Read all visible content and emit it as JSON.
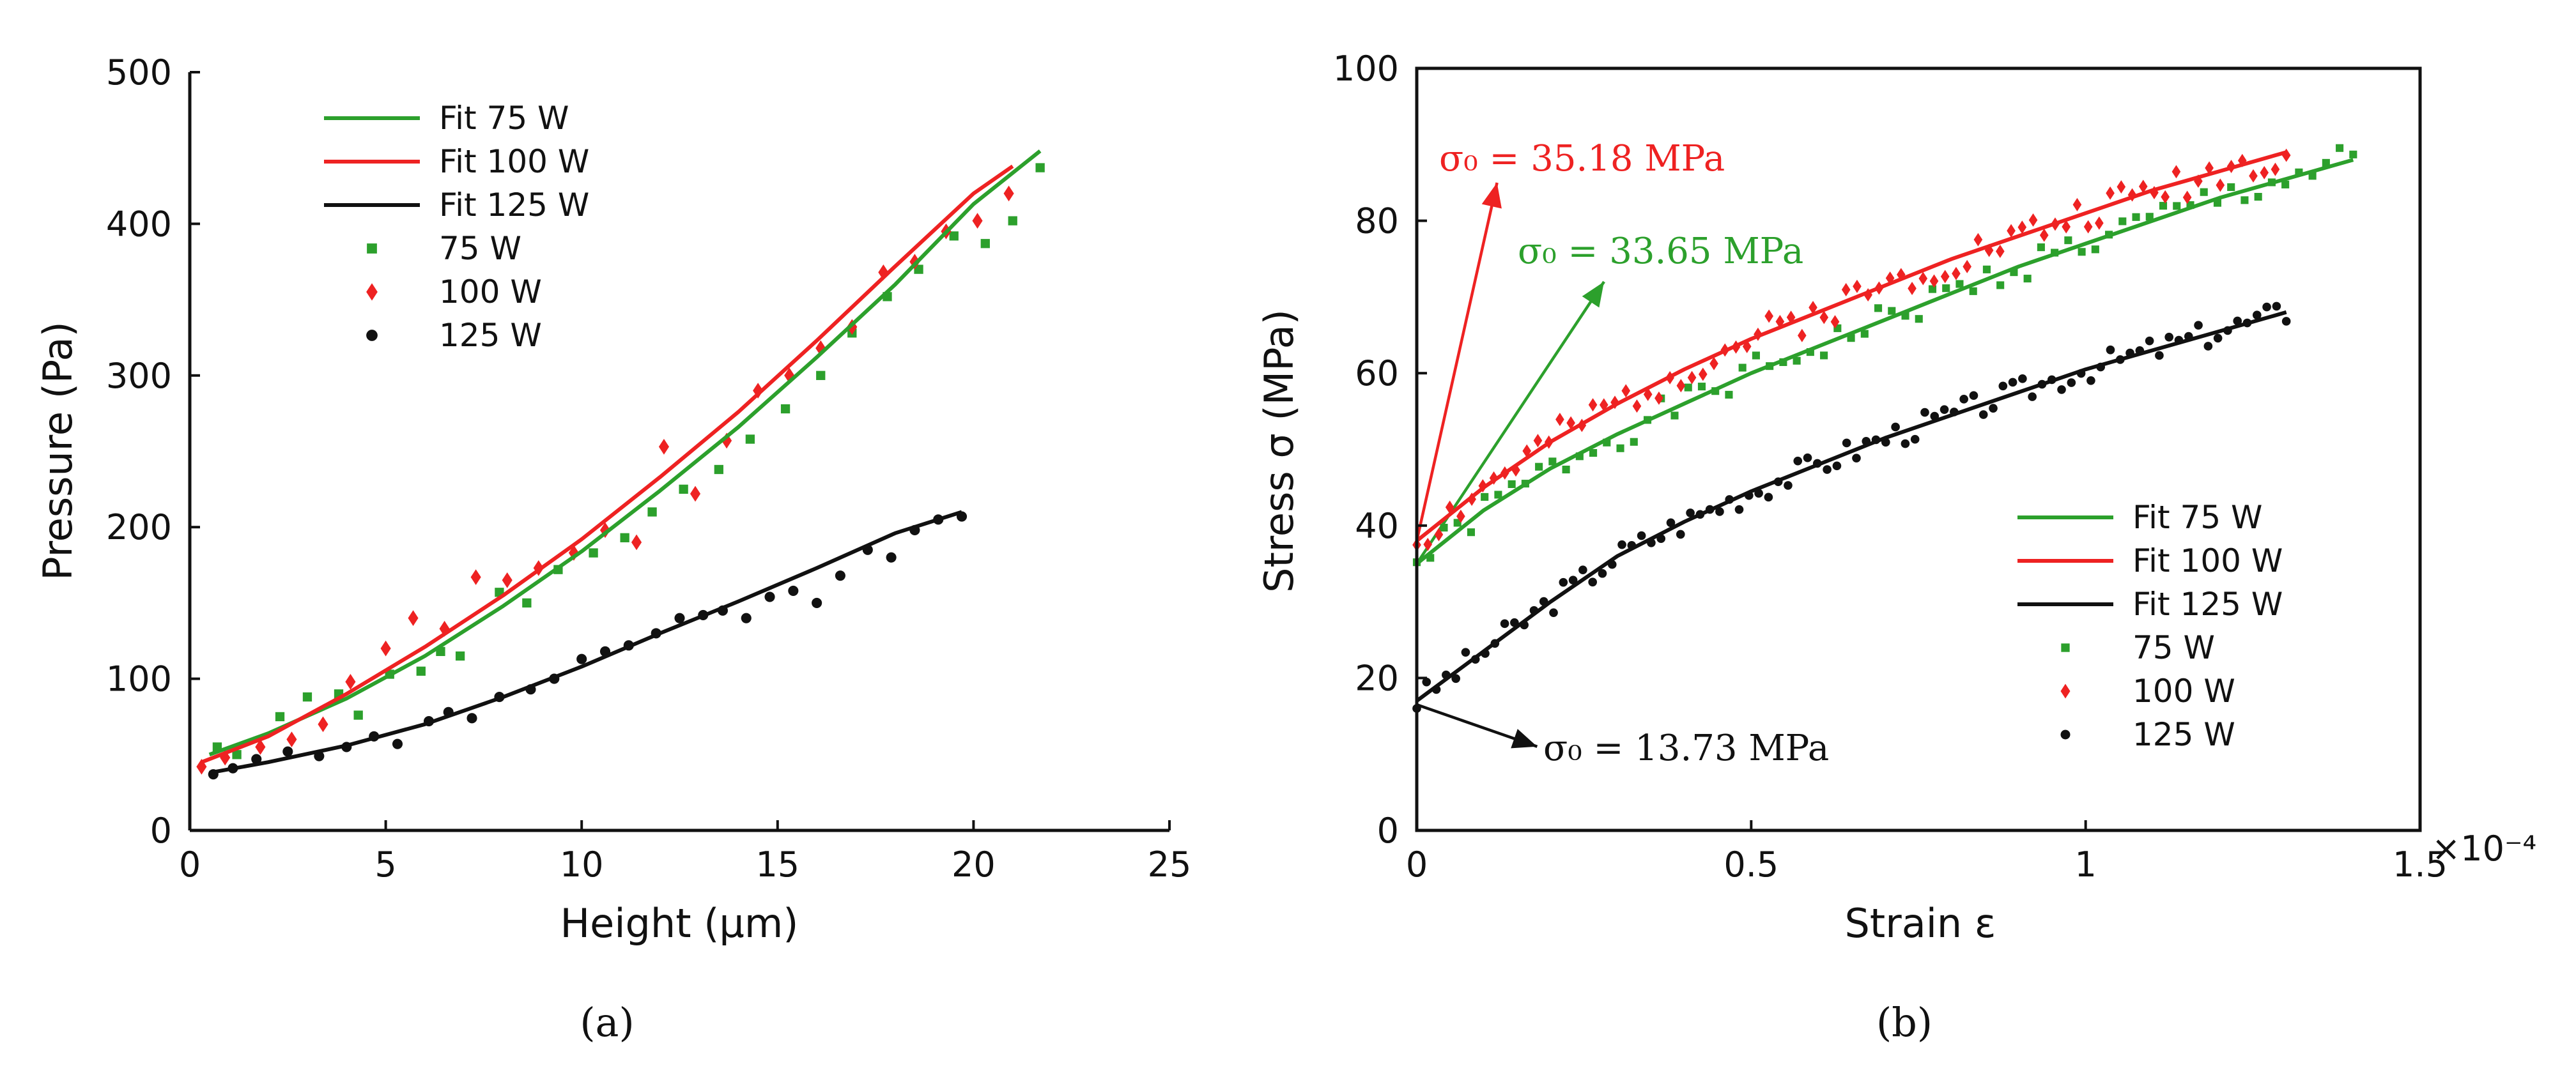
{
  "chart_data": [
    {
      "type": "scatter",
      "panel_label": "(a)",
      "title": "",
      "xlabel": "Height (µm)",
      "ylabel": "Pressure (Pa)",
      "xlim": [
        0,
        25
      ],
      "ylim": [
        0,
        500
      ],
      "xticks": [
        0,
        5,
        10,
        15,
        20,
        25
      ],
      "yticks": [
        0,
        100,
        200,
        300,
        400,
        500
      ],
      "legend_position": "top-left",
      "legend": [
        "Fit 75 W",
        "Fit 100 W",
        "Fit 125 W",
        "75 W",
        "100 W",
        "125 W"
      ],
      "series": [
        {
          "name": "Fit 75 W",
          "kind": "line",
          "color": "#2ca02c",
          "x": [
            0.5,
            2,
            4,
            6,
            8,
            10,
            12,
            14,
            16,
            18,
            20,
            21.7
          ],
          "y": [
            50,
            64,
            87,
            115,
            148,
            184,
            224,
            266,
            312,
            360,
            413,
            448
          ]
        },
        {
          "name": "Fit 100 W",
          "kind": "line",
          "color": "#ee2222",
          "x": [
            0.3,
            2,
            4,
            6,
            8,
            10,
            12,
            14,
            16,
            18,
            20,
            21
          ],
          "y": [
            45,
            62,
            90,
            121,
            155,
            192,
            233,
            276,
            323,
            372,
            420,
            438
          ]
        },
        {
          "name": "Fit 125 W",
          "kind": "line",
          "color": "#111111",
          "x": [
            0.5,
            2,
            4,
            6,
            8,
            10,
            12,
            14,
            16,
            18,
            19.7
          ],
          "y": [
            38,
            45,
            56,
            70,
            88,
            108,
            130,
            151,
            173,
            196,
            210
          ]
        },
        {
          "name": "75 W",
          "kind": "scatter",
          "marker": "square",
          "color": "#2ca02c",
          "x": [
            0.7,
            1.2,
            2.3,
            3.0,
            3.8,
            4.3,
            5.1,
            5.9,
            6.4,
            6.9,
            7.9,
            8.6,
            9.4,
            10.3,
            11.1,
            11.8,
            12.6,
            13.5,
            14.3,
            15.2,
            16.1,
            16.9,
            17.8,
            18.6,
            19.5,
            20.3,
            21.0,
            21.7
          ],
          "y": [
            55,
            50,
            75,
            88,
            90,
            76,
            103,
            105,
            118,
            115,
            157,
            150,
            172,
            183,
            193,
            210,
            225,
            238,
            258,
            278,
            300,
            328,
            352,
            370,
            392,
            387,
            402,
            437
          ]
        },
        {
          "name": "100 W",
          "kind": "scatter",
          "marker": "diamond",
          "color": "#ee2222",
          "x": [
            0.3,
            0.9,
            1.8,
            2.6,
            3.4,
            4.1,
            5.0,
            5.7,
            6.5,
            7.3,
            8.1,
            8.9,
            9.8,
            10.6,
            11.4,
            12.1,
            12.9,
            13.7,
            14.5,
            15.3,
            16.1,
            16.9,
            17.7,
            18.5,
            19.3,
            20.1,
            20.9
          ],
          "y": [
            42,
            48,
            55,
            60,
            70,
            98,
            120,
            140,
            133,
            167,
            165,
            173,
            183,
            198,
            190,
            253,
            222,
            257,
            290,
            300,
            318,
            332,
            368,
            375,
            395,
            402,
            420
          ]
        },
        {
          "name": "125 W",
          "kind": "scatter",
          "marker": "circle",
          "color": "#111111",
          "x": [
            0.6,
            1.1,
            1.7,
            2.5,
            3.3,
            4.0,
            4.7,
            5.3,
            6.1,
            6.6,
            7.2,
            7.9,
            8.7,
            9.3,
            10.0,
            10.6,
            11.2,
            11.9,
            12.5,
            13.1,
            13.6,
            14.2,
            14.8,
            15.4,
            16.0,
            16.6,
            17.3,
            17.9,
            18.5,
            19.1,
            19.7
          ],
          "y": [
            37,
            41,
            47,
            52,
            49,
            55,
            62,
            57,
            72,
            78,
            74,
            88,
            93,
            100,
            113,
            118,
            122,
            130,
            140,
            142,
            145,
            140,
            154,
            158,
            150,
            168,
            185,
            180,
            198,
            205,
            207
          ]
        }
      ]
    },
    {
      "type": "scatter",
      "panel_label": "(b)",
      "title": "",
      "xlabel": "Strain ε",
      "ylabel": "Stress σ (MPa)",
      "xlim": [
        0,
        1.5
      ],
      "ylim": [
        0,
        100
      ],
      "x_scale_label": "×10⁻⁴",
      "xticks": [
        0,
        0.5,
        1,
        1.5
      ],
      "xtick_labels": [
        "0",
        "0.5",
        "1",
        "1.5"
      ],
      "yticks": [
        0,
        20,
        40,
        60,
        80,
        100
      ],
      "legend_position": "lower-right",
      "legend": [
        "Fit 75 W",
        "Fit 100 W",
        "Fit 125 W",
        "75 W",
        "100 W",
        "125 W"
      ],
      "annotations": [
        {
          "text": "σ₀ = 35.18 MPa",
          "color": "#ee2222",
          "x_from": 0,
          "y_from": 38,
          "x_to": 0.12,
          "y_to": 85
        },
        {
          "text": "σ₀ = 33.65 MPa",
          "color": "#2ca02c",
          "x_from": 0,
          "y_from": 35,
          "x_to": 0.28,
          "y_to": 72
        },
        {
          "text": "σ₀ = 13.73 MPa",
          "color": "#111111",
          "x_from": 0,
          "y_from": 16.5,
          "x_to": 0.18,
          "y_to": 11
        }
      ],
      "series": [
        {
          "name": "Fit 75 W",
          "kind": "line",
          "color": "#2ca02c",
          "x": [
            0,
            0.1,
            0.2,
            0.3,
            0.4,
            0.5,
            0.6,
            0.7,
            0.8,
            0.9,
            1.0,
            1.1,
            1.2,
            1.3,
            1.4
          ],
          "y": [
            35,
            42,
            47.5,
            52,
            56,
            60,
            63.5,
            67,
            70.5,
            74,
            77,
            80,
            83,
            85.5,
            88
          ]
        },
        {
          "name": "Fit 100 W",
          "kind": "line",
          "color": "#ee2222",
          "x": [
            0,
            0.1,
            0.2,
            0.3,
            0.4,
            0.5,
            0.6,
            0.7,
            0.8,
            0.9,
            1.0,
            1.1,
            1.2,
            1.3
          ],
          "y": [
            38,
            45,
            51,
            56,
            60.5,
            64.5,
            68,
            71.5,
            75,
            78,
            81,
            84,
            86.5,
            89
          ]
        },
        {
          "name": "Fit 125 W",
          "kind": "line",
          "color": "#111111",
          "x": [
            0,
            0.1,
            0.2,
            0.3,
            0.4,
            0.5,
            0.6,
            0.7,
            0.8,
            0.9,
            1.0,
            1.1,
            1.2,
            1.3
          ],
          "y": [
            17,
            23.5,
            30,
            36,
            40.5,
            44.5,
            48,
            51.5,
            54.5,
            57.5,
            60.5,
            63,
            65.5,
            68
          ]
        },
        {
          "name": "75 W",
          "kind": "scatter",
          "marker": "square",
          "color": "#2ca02c",
          "generator": {
            "x0": 0,
            "x1": 1.4,
            "n": 70,
            "amplitude": 1.3,
            "seed": 1
          }
        },
        {
          "name": "100 W",
          "kind": "scatter",
          "marker": "diamond",
          "color": "#ee2222",
          "generator": {
            "x0": 0,
            "x1": 1.3,
            "n": 80,
            "amplitude": 1.4,
            "seed": 2
          }
        },
        {
          "name": "125 W",
          "kind": "scatter",
          "marker": "circle",
          "color": "#111111",
          "generator": {
            "x0": 0,
            "x1": 1.3,
            "n": 90,
            "amplitude": 1.1,
            "seed": 3
          }
        }
      ]
    }
  ]
}
